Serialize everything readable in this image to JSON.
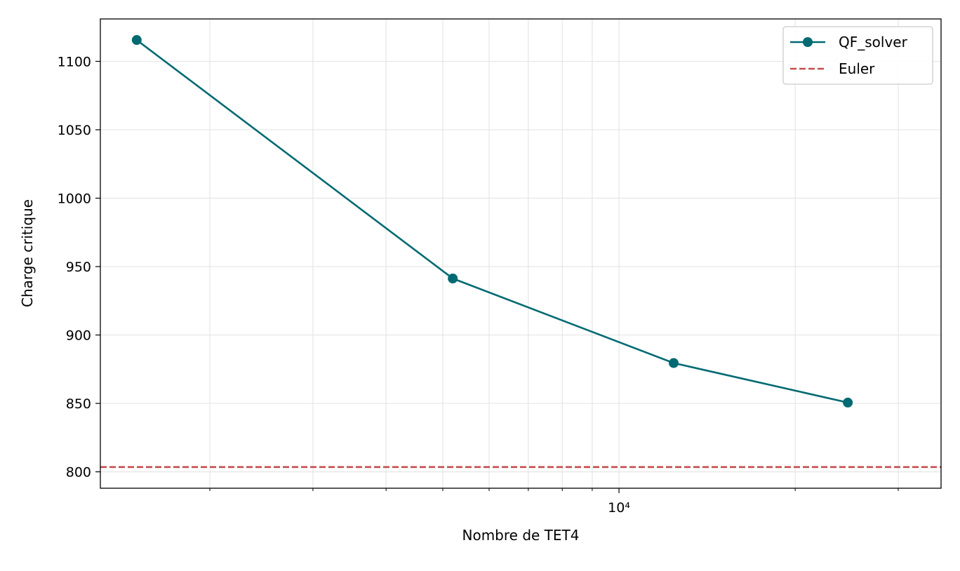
{
  "chart_data": {
    "type": "line",
    "title": "",
    "xlabel": "Nombre de TET4",
    "ylabel": "Charge critique",
    "xscale": "log",
    "xlim": [
      1300,
      35500
    ],
    "ylim": [
      788,
      1131
    ],
    "x_major_ticks": [
      10000
    ],
    "x_major_tick_labels": [
      "10⁴"
    ],
    "x_minor_ticks": [
      2000,
      3000,
      4000,
      5000,
      6000,
      7000,
      8000,
      9000,
      20000,
      30000
    ],
    "y_ticks": [
      800,
      850,
      900,
      950,
      1000,
      1050,
      1100
    ],
    "y_tick_labels": [
      "800",
      "850",
      "900",
      "950",
      "1000",
      "1050",
      "1100"
    ],
    "grid": true,
    "legend_position": "top-right",
    "series": [
      {
        "name": "QF_solver",
        "style": "line-with-markers",
        "color": "#006a72",
        "x": [
          1500,
          5200,
          12400,
          24600
        ],
        "y": [
          1115.6,
          941.3,
          879.5,
          850.6
        ]
      },
      {
        "name": "Euler",
        "style": "dashed-horizontal",
        "color": "#c44e4e",
        "y": 803.5
      }
    ]
  }
}
